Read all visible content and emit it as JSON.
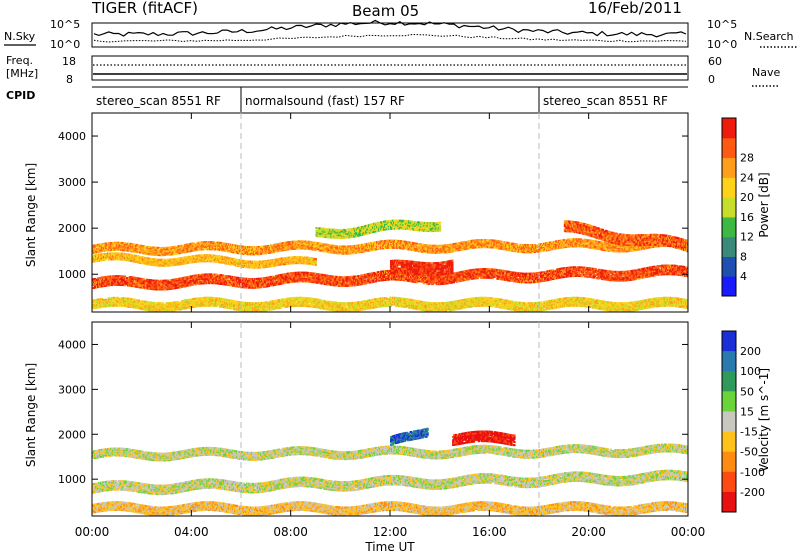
{
  "header": {
    "radar": "TIGER (fitACF)",
    "beam": "Beam 05",
    "date": "16/Feb/2011"
  },
  "top_panels": {
    "nsky_label": "N.Sky",
    "nsky_ticks": [
      "10^5",
      "10^0"
    ],
    "nsky_right_ticks": [
      "10^5",
      "10^0"
    ],
    "nsearch_label": "N.Search",
    "freq_label_line1": "Freq.",
    "freq_label_line2": "[MHz]",
    "freq_ticks": [
      "18",
      "8"
    ],
    "nave_ticks": [
      "60",
      "0"
    ],
    "nave_label": "Nave",
    "cpid_label": "CPID",
    "cpid_segments": [
      {
        "label": "stereo_scan 8551 RF",
        "start_hour": 0,
        "end_hour": 6
      },
      {
        "label": "normalsound (fast) 157 RF",
        "start_hour": 6,
        "end_hour": 18
      },
      {
        "label": "stereo_scan 8551 RF",
        "start_hour": 18,
        "end_hour": 24
      }
    ]
  },
  "panels": {
    "ylabel": "Slant Range [km]",
    "y_ticks": [
      "1000",
      "2000",
      "3000",
      "4000"
    ],
    "x_ticks": [
      "00:00",
      "04:00",
      "08:00",
      "12:00",
      "16:00",
      "20:00",
      "00:00"
    ],
    "xlabel": "Time UT"
  },
  "power_colorbar": {
    "label": "Power [dB]",
    "ticks": [
      "4",
      "8",
      "12",
      "16",
      "20",
      "24",
      "28"
    ],
    "colors": [
      "#1a1aff",
      "#1f4fb0",
      "#3a8a7a",
      "#3cb843",
      "#c6de2a",
      "#ffd21a",
      "#ff9e1a",
      "#ff5a12",
      "#ee1c0c"
    ]
  },
  "velocity_colorbar": {
    "label": "Velocity [m s^-1]",
    "ticks": [
      "200",
      "100",
      "50",
      "15",
      "-15",
      "-50",
      "-100",
      "-200"
    ],
    "colors": [
      "#1a2fd6",
      "#2a7ab0",
      "#2f9a5c",
      "#6ad43a",
      "#c8c8c0",
      "#ffc21a",
      "#ff8c12",
      "#ff4a12",
      "#e81010"
    ]
  },
  "chart_data": [
    {
      "type": "heatmap",
      "title": "Power",
      "xlabel": "Time UT",
      "ylabel": "Slant Range [km]",
      "xlim": [
        0,
        24
      ],
      "ylim": [
        180,
        4500
      ],
      "colorbar_label": "Power [dB]",
      "colorbar_range": [
        0,
        30
      ],
      "bands": [
        {
          "t": [
            0,
            24
          ],
          "r_center_start": 1550,
          "r_center_end": 1650,
          "width": 180,
          "value": 22
        },
        {
          "t": [
            0,
            24
          ],
          "r_center_start": 800,
          "r_center_end": 1050,
          "width": 220,
          "value": 26
        },
        {
          "t": [
            0,
            9
          ],
          "r_center_start": 1350,
          "r_center_end": 1250,
          "width": 150,
          "value": 20
        },
        {
          "t": [
            9,
            14
          ],
          "r_center_start": 1900,
          "r_center_end": 2100,
          "width": 200,
          "value": 15
        },
        {
          "t": [
            12,
            14.5
          ],
          "r_center_start": 1100,
          "r_center_end": 1200,
          "width": 300,
          "value": 28
        },
        {
          "t": [
            19,
            24
          ],
          "r_center_start": 2000,
          "r_center_end": 1600,
          "width": 250,
          "value": 25
        },
        {
          "t": [
            0,
            24
          ],
          "r_center_start": 350,
          "r_center_end": 350,
          "width": 200,
          "value": 18
        }
      ]
    },
    {
      "type": "heatmap",
      "title": "Velocity",
      "xlabel": "Time UT",
      "ylabel": "Slant Range [km]",
      "xlim": [
        0,
        24
      ],
      "ylim": [
        180,
        4500
      ],
      "colorbar_label": "Velocity [m s^-1]",
      "colorbar_range": [
        -200,
        200
      ],
      "bands": [
        {
          "t": [
            0,
            24
          ],
          "r_center_start": 1550,
          "r_center_end": 1650,
          "width": 180,
          "value": 0
        },
        {
          "t": [
            0,
            24
          ],
          "r_center_start": 800,
          "r_center_end": 1050,
          "width": 220,
          "value": 0
        },
        {
          "t": [
            12,
            13.5
          ],
          "r_center_start": 1800,
          "r_center_end": 2100,
          "width": 200,
          "value": 150
        },
        {
          "t": [
            14.5,
            17
          ],
          "r_center_start": 1900,
          "r_center_end": 1900,
          "width": 250,
          "value": -180
        },
        {
          "t": [
            0,
            24
          ],
          "r_center_start": 350,
          "r_center_end": 350,
          "width": 200,
          "value": -40
        }
      ]
    }
  ]
}
